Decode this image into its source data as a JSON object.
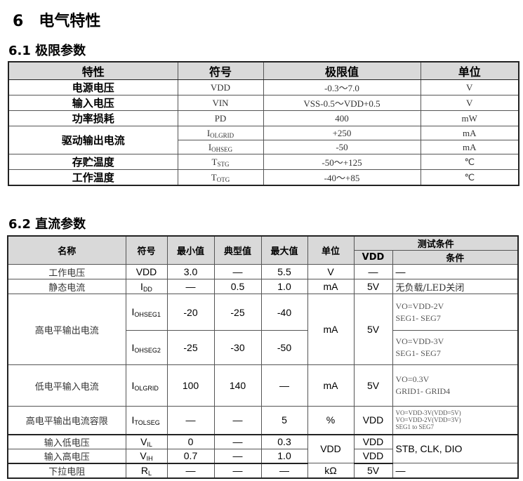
{
  "section": {
    "number": "6",
    "title": "电气特性"
  },
  "s1": {
    "title": "6.1 极限参数",
    "headers": [
      "特性",
      "符号",
      "极限值",
      "单位"
    ],
    "rows": [
      {
        "name": "电源电压",
        "sym": "VDD",
        "sub": "",
        "val": "-0.3～7.0",
        "unit": "V"
      },
      {
        "name": "输入电压",
        "sym": "VIN",
        "sub": "",
        "val": "VSS-0.5～VDD+0.5",
        "unit": "V"
      },
      {
        "name": "功率损耗",
        "sym": "PD",
        "sub": "",
        "val": "400",
        "unit": "mW"
      },
      {
        "name": "驱动输出电流",
        "sym": "I",
        "sub": "OLGRID",
        "val": "+250",
        "unit": "mA"
      },
      {
        "name": "",
        "sym": "I",
        "sub": "OHSEG",
        "val": "-50",
        "unit": "mA"
      },
      {
        "name": "存贮温度",
        "sym": "T",
        "sub": "STG",
        "val": "-50～+125",
        "unit": "℃"
      },
      {
        "name": "工作温度",
        "sym": "T",
        "sub": "OTG",
        "val": "-40～+85",
        "unit": "℃"
      }
    ]
  },
  "s2": {
    "title": "6.2 直流参数",
    "headers": {
      "name": "名称",
      "sym": "符号",
      "min": "最小值",
      "typ": "典型值",
      "max": "最大值",
      "unit": "单位",
      "test": "测试条件",
      "vdd": "VDD",
      "cond": "条件"
    },
    "rows": [
      {
        "name": "工作电压",
        "sym": "VDD",
        "sub": "",
        "min": "3.0",
        "typ": "—",
        "max": "5.5",
        "unit": "V",
        "vdd": "—",
        "cond": "—"
      },
      {
        "name": "静态电流",
        "sym": "I",
        "sub": "DD",
        "min": "—",
        "typ": "0.5",
        "max": "1.0",
        "unit": "mA",
        "vdd": "5V",
        "cond": "无负载/LED关闭"
      },
      {
        "name": "高电平输出电流",
        "sym": "I",
        "sub": "OHSEG1",
        "min": "-20",
        "typ": "-25",
        "max": "-40",
        "unit": "mA",
        "vdd": "5V",
        "cond": "VO=VDD-2V",
        "cond2": "SEG1- SEG7"
      },
      {
        "sym": "I",
        "sub": "OHSEG2",
        "min": "-25",
        "typ": "-30",
        "max": "-50",
        "cond": "VO=VDD-3V",
        "cond2": "SEG1- SEG7"
      },
      {
        "name": "低电平输入电流",
        "sym": "I",
        "sub": "OLGRID",
        "min": "100",
        "typ": "140",
        "max": "—",
        "unit": "mA",
        "vdd": "5V",
        "cond": "VO=0.3V",
        "cond2": "GRID1- GRID4"
      },
      {
        "name": "高电平输出电流容限",
        "sym": "I",
        "sub": "TOLSEG",
        "min": "—",
        "typ": "—",
        "max": "5",
        "unit": "%",
        "vdd": "VDD",
        "cond": "VO=VDD-3V(VDD=5V)",
        "cond2": "VO=VDD-2V(VDD=3V)",
        "cond3": "SEG1 to SEG7"
      },
      {
        "name": "输入低电压",
        "sym": "V",
        "sub": "IL",
        "min": "0",
        "typ": "—",
        "max": "0.3",
        "unit": "VDD",
        "vdd": "VDD",
        "cond": "STB,  CLK,  DIO"
      },
      {
        "name": "输入高电压",
        "sym": "V",
        "sub": "IH",
        "min": "0.7",
        "typ": "—",
        "max": "1.0",
        "vdd": "VDD"
      },
      {
        "name": "下拉电阻",
        "sym": "R",
        "sub": "L",
        "min": "—",
        "typ": "—",
        "max": "—",
        "unit": "kΩ",
        "vdd": "5V",
        "cond": "—"
      }
    ]
  }
}
